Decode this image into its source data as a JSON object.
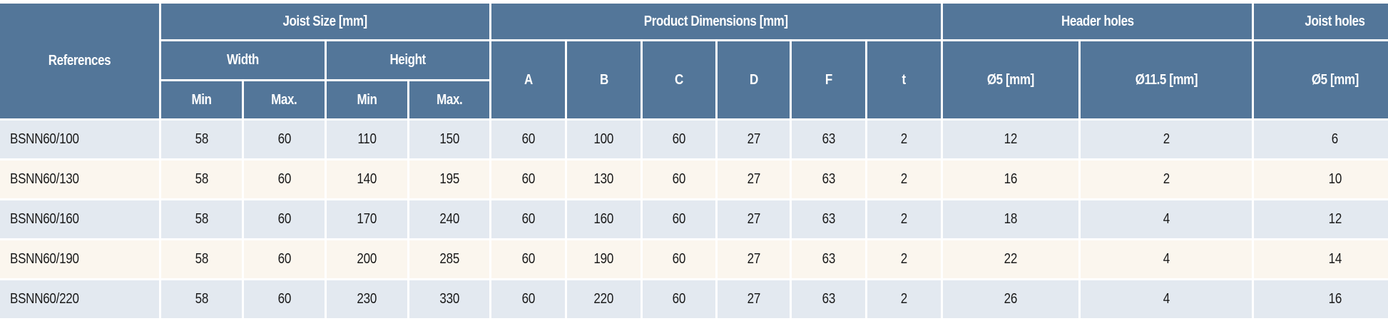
{
  "header": {
    "references": "References",
    "joist_size": "Joist Size [mm]",
    "product_dimensions": "Product Dimensions [mm]",
    "header_holes": "Header holes",
    "joist_holes": "Joist holes",
    "width": "Width",
    "height": "Height",
    "width_min": "Min",
    "width_max": "Max.",
    "height_min": "Min",
    "height_max": "Max.",
    "dims": [
      "A",
      "B",
      "C",
      "D",
      "F",
      "t"
    ],
    "header_d5": "Ø5 [mm]",
    "header_d115": "Ø11.5 [mm]",
    "joist_d5": "Ø5 [mm]"
  },
  "colors": {
    "header_bg": "#537699",
    "row_odd": "#e3e9f0",
    "row_even": "#fbf6ee"
  },
  "rows": [
    [
      "BSNN60/100",
      "58",
      "60",
      "110",
      "150",
      "60",
      "100",
      "60",
      "27",
      "63",
      "2",
      "12",
      "2",
      "6"
    ],
    [
      "BSNN60/130",
      "58",
      "60",
      "140",
      "195",
      "60",
      "130",
      "60",
      "27",
      "63",
      "2",
      "16",
      "2",
      "10"
    ],
    [
      "BSNN60/160",
      "58",
      "60",
      "170",
      "240",
      "60",
      "160",
      "60",
      "27",
      "63",
      "2",
      "18",
      "4",
      "12"
    ],
    [
      "BSNN60/190",
      "58",
      "60",
      "200",
      "285",
      "60",
      "190",
      "60",
      "27",
      "63",
      "2",
      "22",
      "4",
      "14"
    ],
    [
      "BSNN60/220",
      "58",
      "60",
      "230",
      "330",
      "60",
      "220",
      "60",
      "27",
      "63",
      "2",
      "26",
      "4",
      "16"
    ]
  ]
}
